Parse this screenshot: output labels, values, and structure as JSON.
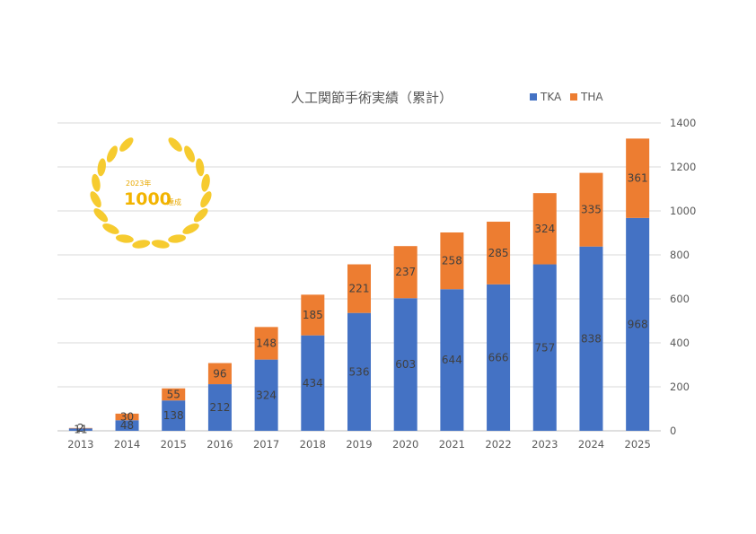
{
  "chart_data": {
    "type": "bar",
    "stacked": true,
    "title": "人工関節手術実績（累計）",
    "categories": [
      "2013",
      "2014",
      "2015",
      "2016",
      "2017",
      "2018",
      "2019",
      "2020",
      "2021",
      "2022",
      "2023",
      "2024",
      "2025"
    ],
    "series": [
      {
        "name": "TKA",
        "color": "#4472c4",
        "values": [
          11,
          48,
          138,
          212,
          324,
          434,
          536,
          603,
          644,
          666,
          757,
          838,
          968
        ]
      },
      {
        "name": "THA",
        "color": "#ed7d31",
        "values": [
          2,
          30,
          55,
          96,
          148,
          185,
          221,
          237,
          258,
          285,
          324,
          335,
          361
        ]
      }
    ],
    "ylim": [
      0,
      1400
    ],
    "yticks": [
      0,
      200,
      400,
      600,
      800,
      1000,
      1200,
      1400
    ],
    "y_axis_side": "right",
    "grid": true,
    "legend_position": "top-right"
  },
  "badge": {
    "year": "2023年",
    "number": "1000",
    "suffix": "達成",
    "laurel_color": "#f5c518"
  }
}
